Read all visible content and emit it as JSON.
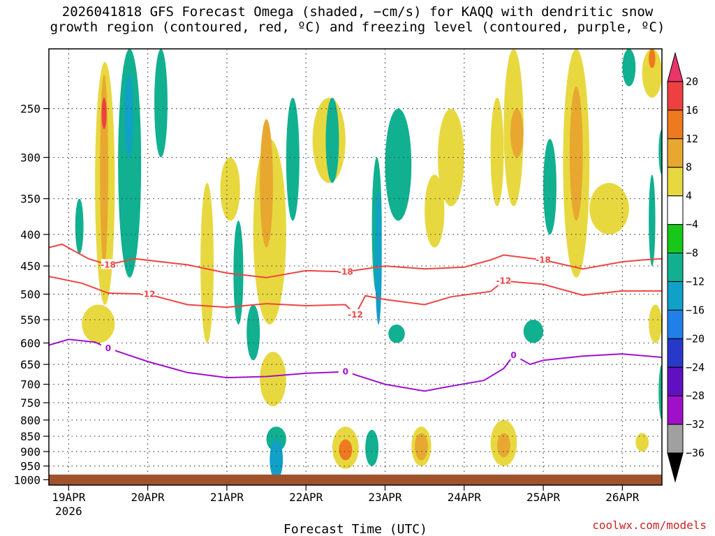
{
  "chart_data": {
    "type": "heatmap",
    "title_line1": "2026041818 GFS Forecast Omega (shaded, −cm/s) for KAQQ with dendritic snow",
    "title_line2": "growth region (contoured, red, ºC) and freezing level (contoured, purple, ºC)",
    "xlabel": "Forecast Time (UTC)",
    "ylabel": "",
    "x_ticks": [
      "19APR",
      "20APR",
      "21APR",
      "22APR",
      "23APR",
      "24APR",
      "25APR",
      "26APR"
    ],
    "x_year": "2026",
    "x_range_hours": [
      -6,
      180
    ],
    "y_ticks": [
      250,
      300,
      350,
      400,
      450,
      500,
      550,
      600,
      650,
      700,
      750,
      800,
      850,
      900,
      950,
      1000
    ],
    "y_range_hpa": [
      200,
      1020
    ],
    "colorbar": {
      "labels": [
        "20",
        "16",
        "12",
        "8",
        "4",
        "−4",
        "−8",
        "−12",
        "−16",
        "−20",
        "−24",
        "−28",
        "−32",
        "−36"
      ],
      "colors": [
        "#e8356a",
        "#ee4040",
        "#ee7a20",
        "#e8a830",
        "#e8d840",
        "#ffffff",
        "#18c818",
        "#10b090",
        "#10a0c8",
        "#2080e8",
        "#2838c8",
        "#6010c0",
        "#a010c8",
        "#a0a0a0",
        "#000000"
      ]
    },
    "contours": [
      {
        "level": "-18",
        "color": "#ee4444",
        "points": [
          [
            -6,
            420
          ],
          [
            -2,
            415
          ],
          [
            6,
            438
          ],
          [
            12,
            448
          ],
          [
            20,
            438
          ],
          [
            36,
            448
          ],
          [
            48,
            462
          ],
          [
            60,
            470
          ],
          [
            72,
            458
          ],
          [
            84,
            460
          ],
          [
            96,
            450
          ],
          [
            108,
            455
          ],
          [
            120,
            452
          ],
          [
            128,
            440
          ],
          [
            132,
            432
          ],
          [
            144,
            440
          ],
          [
            156,
            455
          ],
          [
            168,
            443
          ],
          [
            174,
            440
          ],
          [
            180,
            438
          ]
        ]
      },
      {
        "level": "-12",
        "color": "#ee4444",
        "points": [
          [
            -6,
            468
          ],
          [
            4,
            480
          ],
          [
            12,
            498
          ],
          [
            24,
            500
          ],
          [
            36,
            520
          ],
          [
            48,
            525
          ],
          [
            60,
            518
          ],
          [
            72,
            522
          ],
          [
            84,
            520
          ],
          [
            87,
            540
          ],
          [
            90,
            503
          ],
          [
            96,
            510
          ],
          [
            108,
            520
          ],
          [
            116,
            505
          ],
          [
            128,
            495
          ],
          [
            132,
            476
          ],
          [
            144,
            482
          ],
          [
            156,
            502
          ],
          [
            168,
            494
          ],
          [
            180,
            494
          ]
        ]
      },
      {
        "level": "0",
        "color": "#a010d0",
        "points": [
          [
            -6,
            605
          ],
          [
            0,
            592
          ],
          [
            8,
            598
          ],
          [
            12,
            612
          ],
          [
            24,
            643
          ],
          [
            36,
            670
          ],
          [
            48,
            683
          ],
          [
            60,
            680
          ],
          [
            72,
            672
          ],
          [
            84,
            668
          ],
          [
            96,
            700
          ],
          [
            108,
            718
          ],
          [
            116,
            705
          ],
          [
            126,
            690
          ],
          [
            132,
            660
          ],
          [
            135,
            628
          ],
          [
            140,
            650
          ],
          [
            144,
            640
          ],
          [
            156,
            630
          ],
          [
            168,
            625
          ],
          [
            180,
            633
          ]
        ]
      }
    ],
    "omega_patches": [
      {
        "v": 6,
        "t": [
          8,
          14
        ],
        "p": [
          210,
          520
        ]
      },
      {
        "v": 10,
        "t": [
          9.5,
          12
        ],
        "p": [
          220,
          450
        ]
      },
      {
        "v": 16,
        "t": [
          10,
          11.5
        ],
        "p": [
          240,
          270
        ]
      },
      {
        "v": -8,
        "t": [
          15,
          22
        ],
        "p": [
          200,
          470
        ]
      },
      {
        "v": -14,
        "t": [
          17,
          19.5
        ],
        "p": [
          220,
          300
        ]
      },
      {
        "v": -8,
        "t": [
          2,
          4.5
        ],
        "p": [
          350,
          430
        ]
      },
      {
        "v": 6,
        "t": [
          4,
          14
        ],
        "p": [
          520,
          600
        ]
      },
      {
        "v": -8,
        "t": [
          26,
          30
        ],
        "p": [
          200,
          300
        ]
      },
      {
        "v": 6,
        "t": [
          40,
          44
        ],
        "p": [
          330,
          600
        ]
      },
      {
        "v": 6,
        "t": [
          46,
          52
        ],
        "p": [
          300,
          380
        ]
      },
      {
        "v": -8,
        "t": [
          50,
          53
        ],
        "p": [
          380,
          560
        ]
      },
      {
        "v": 6,
        "t": [
          56,
          66
        ],
        "p": [
          280,
          560
        ]
      },
      {
        "v": 10,
        "t": [
          58,
          62
        ],
        "p": [
          260,
          420
        ]
      },
      {
        "v": -8,
        "t": [
          54,
          58
        ],
        "p": [
          520,
          640
        ]
      },
      {
        "v": 6,
        "t": [
          58,
          66
        ],
        "p": [
          620,
          760
        ]
      },
      {
        "v": -8,
        "t": [
          60,
          66
        ],
        "p": [
          820,
          900
        ]
      },
      {
        "v": -14,
        "t": [
          61,
          65
        ],
        "p": [
          860,
          1000
        ]
      },
      {
        "v": -8,
        "t": [
          66,
          70
        ],
        "p": [
          240,
          380
        ]
      },
      {
        "v": 6,
        "t": [
          74,
          84
        ],
        "p": [
          240,
          330
        ]
      },
      {
        "v": -8,
        "t": [
          78,
          82
        ],
        "p": [
          240,
          330
        ]
      },
      {
        "v": -8,
        "t": [
          92,
          95
        ],
        "p": [
          300,
          500
        ]
      },
      {
        "v": -14,
        "t": [
          93,
          95
        ],
        "p": [
          340,
          560
        ]
      },
      {
        "v": -10,
        "t": [
          96,
          104
        ],
        "p": [
          250,
          380
        ]
      },
      {
        "v": -8,
        "t": [
          97,
          102
        ],
        "p": [
          560,
          600
        ]
      },
      {
        "v": 6,
        "t": [
          80,
          88
        ],
        "p": [
          820,
          960
        ]
      },
      {
        "v": 12,
        "t": [
          82,
          86
        ],
        "p": [
          860,
          930
        ]
      },
      {
        "v": -8,
        "t": [
          90,
          94
        ],
        "p": [
          830,
          950
        ]
      },
      {
        "v": 6,
        "t": [
          108,
          114
        ],
        "p": [
          320,
          420
        ]
      },
      {
        "v": 6,
        "t": [
          112,
          120
        ],
        "p": [
          250,
          360
        ]
      },
      {
        "v": 6,
        "t": [
          104,
          110
        ],
        "p": [
          820,
          950
        ]
      },
      {
        "v": 10,
        "t": [
          105,
          109
        ],
        "p": [
          840,
          930
        ]
      },
      {
        "v": 6,
        "t": [
          128,
          132
        ],
        "p": [
          240,
          360
        ]
      },
      {
        "v": 6,
        "t": [
          132,
          138
        ],
        "p": [
          200,
          360
        ]
      },
      {
        "v": 8,
        "t": [
          134,
          138
        ],
        "p": [
          250,
          300
        ]
      },
      {
        "v": 6,
        "t": [
          128,
          136
        ],
        "p": [
          800,
          950
        ]
      },
      {
        "v": 10,
        "t": [
          130,
          134
        ],
        "p": [
          840,
          920
        ]
      },
      {
        "v": -8,
        "t": [
          138,
          144
        ],
        "p": [
          550,
          600
        ]
      },
      {
        "v": -8,
        "t": [
          144,
          148
        ],
        "p": [
          280,
          400
        ]
      },
      {
        "v": 6,
        "t": [
          150,
          158
        ],
        "p": [
          200,
          470
        ]
      },
      {
        "v": 10,
        "t": [
          152,
          156
        ],
        "p": [
          230,
          380
        ]
      },
      {
        "v": 6,
        "t": [
          158,
          170
        ],
        "p": [
          330,
          400
        ]
      },
      {
        "v": -8,
        "t": [
          168,
          172
        ],
        "p": [
          200,
          230
        ]
      },
      {
        "v": 6,
        "t": [
          174,
          180
        ],
        "p": [
          200,
          240
        ]
      },
      {
        "v": 12,
        "t": [
          176,
          178
        ],
        "p": [
          200,
          215
        ]
      },
      {
        "v": -8,
        "t": [
          176,
          178
        ],
        "p": [
          320,
          450
        ]
      },
      {
        "v": -8,
        "t": [
          179,
          181
        ],
        "p": [
          270,
          320
        ]
      },
      {
        "v": -8,
        "t": [
          179,
          181
        ],
        "p": [
          650,
          800
        ]
      },
      {
        "v": 6,
        "t": [
          176,
          180
        ],
        "p": [
          520,
          600
        ]
      },
      {
        "v": 6,
        "t": [
          172,
          176
        ],
        "p": [
          840,
          900
        ]
      }
    ]
  },
  "credit": "coolwx.com/models"
}
